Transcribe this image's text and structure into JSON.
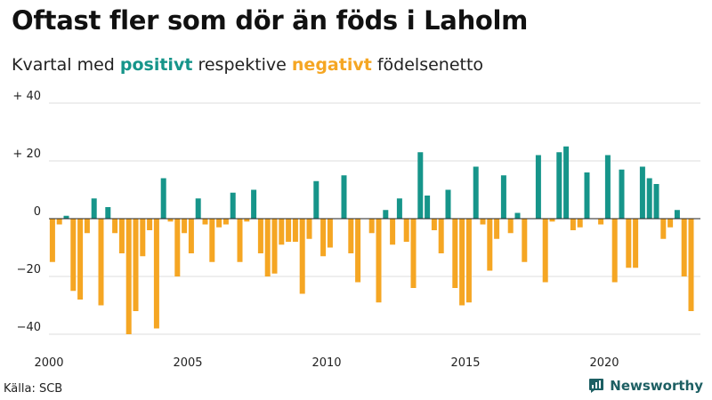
{
  "chart_data": {
    "type": "bar",
    "title": "Oftast fler som dör än föds i Laholm",
    "subtitle": {
      "prefix": "Kvartal med ",
      "positive_word": "positivt",
      "middle": " respektive ",
      "negative_word": "negativt",
      "suffix": " födelsenetto"
    },
    "xlabel": "",
    "ylabel": "",
    "ylim": [
      -44,
      42
    ],
    "y_ticks": [
      {
        "value": 40,
        "label": "+ 40"
      },
      {
        "value": 20,
        "label": "+ 20"
      },
      {
        "value": 0,
        "label": "0"
      },
      {
        "value": -20,
        "label": "−20"
      },
      {
        "value": -40,
        "label": "−40"
      }
    ],
    "x_ticks": [
      {
        "value": 2000,
        "label": "2000"
      },
      {
        "value": 2005,
        "label": "2005"
      },
      {
        "value": 2010,
        "label": "2010"
      },
      {
        "value": 2015,
        "label": "2015"
      },
      {
        "value": 2020,
        "label": "2020"
      }
    ],
    "start_year": 2000,
    "quarters_per_year": 4,
    "values": [
      -15,
      -2,
      1,
      -25,
      -28,
      -5,
      7,
      -30,
      4,
      -5,
      -12,
      -40,
      -32,
      -13,
      -4,
      -38,
      14,
      -1,
      -20,
      -5,
      -12,
      7,
      -2,
      -15,
      -3,
      -2,
      9,
      -15,
      -1,
      10,
      -12,
      -20,
      -19,
      -9,
      -8,
      -8,
      -26,
      -7,
      13,
      -13,
      -10,
      0,
      15,
      -12,
      -22,
      0,
      -5,
      -29,
      3,
      -9,
      7,
      -8,
      -24,
      23,
      8,
      -4,
      -12,
      10,
      -24,
      -30,
      -29,
      18,
      -2,
      -18,
      -7,
      15,
      -5,
      2,
      -15,
      0,
      22,
      -22,
      -1,
      23,
      25,
      -4,
      -3,
      16,
      0,
      -2,
      22,
      -22,
      17,
      -17,
      -17,
      18,
      14,
      12,
      -7,
      -3,
      3,
      -20,
      -32
    ],
    "colors": {
      "positive": "#16958a",
      "negative": "#f5a623"
    },
    "source": "Källa: SCB",
    "brand": "Newsworthy"
  }
}
